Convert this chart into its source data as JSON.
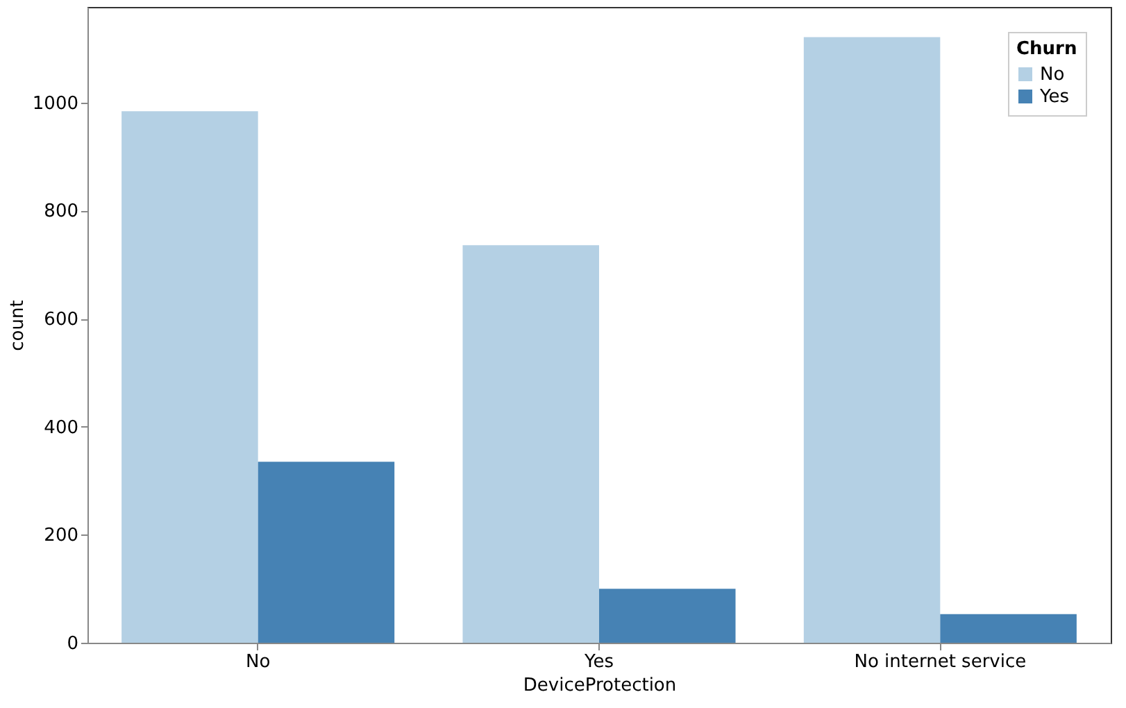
{
  "chart_data": {
    "type": "bar",
    "xlabel": "DeviceProtection",
    "ylabel": "count",
    "legend_title": "Churn",
    "categories": [
      "No",
      "Yes",
      "No internet service"
    ],
    "series": [
      {
        "name": "No",
        "color": "#b4d0e4",
        "values": [
          984,
          736,
          1121
        ]
      },
      {
        "name": "Yes",
        "color": "#4682b4",
        "values": [
          335,
          100,
          53
        ]
      }
    ],
    "ylim": [
      0,
      1177
    ],
    "yticks": [
      0,
      200,
      400,
      600,
      800,
      1000
    ],
    "grid": false,
    "legend": "top right"
  }
}
